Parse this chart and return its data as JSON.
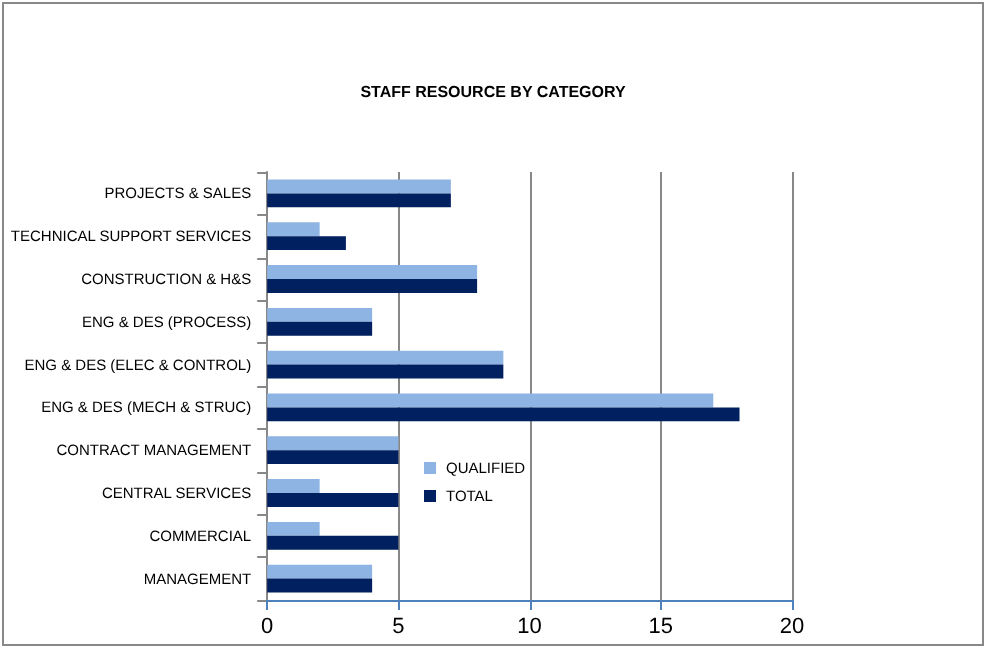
{
  "chart_data": {
    "type": "bar",
    "orientation": "horizontal",
    "title": "STAFF RESOURCE BY CATEGORY",
    "categories": [
      "PROJECTS & SALES",
      "TECHNICAL SUPPORT SERVICES",
      "CONSTRUCTION & H&S",
      "ENG & DES (PROCESS)",
      "ENG & DES (ELEC & CONTROL)",
      "ENG & DES (MECH & STRUC)",
      "CONTRACT MANAGEMENT",
      "CENTRAL SERVICES",
      "COMMERCIAL",
      "MANAGEMENT"
    ],
    "series": [
      {
        "name": "QUALIFIED",
        "color": "#8eb4e3",
        "values": [
          7,
          2,
          8,
          4,
          9,
          17,
          5,
          2,
          2,
          4
        ]
      },
      {
        "name": "TOTAL",
        "color": "#002060",
        "values": [
          7,
          3,
          8,
          4,
          9,
          18,
          5,
          5,
          5,
          4
        ]
      }
    ],
    "xlim": [
      0,
      20
    ],
    "xticks": [
      0,
      5,
      10,
      15,
      20
    ],
    "grid": "x",
    "legend": "center"
  }
}
